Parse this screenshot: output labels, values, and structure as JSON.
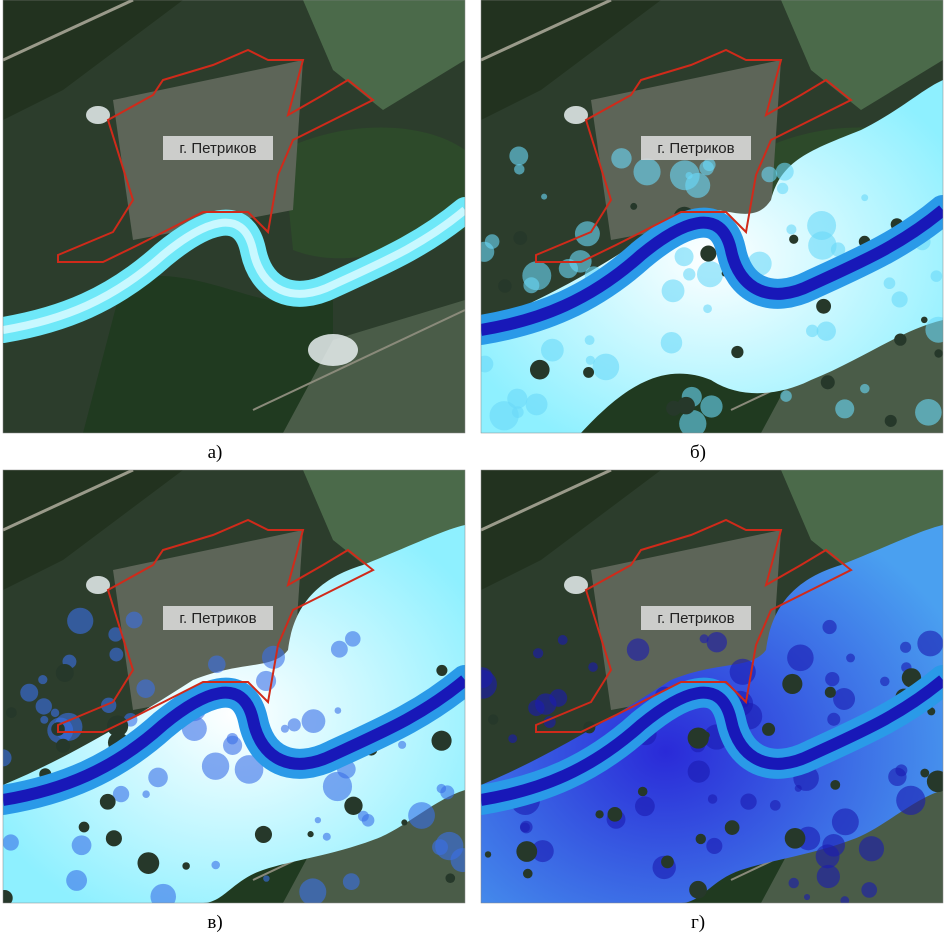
{
  "panels": [
    {
      "label": "г. Петриков",
      "caption": "а)"
    },
    {
      "label": "г. Петриков",
      "caption": "б)"
    },
    {
      "label": "г. Петриков",
      "caption": "в)"
    },
    {
      "label": "г. Петриков",
      "caption": "г)"
    }
  ]
}
